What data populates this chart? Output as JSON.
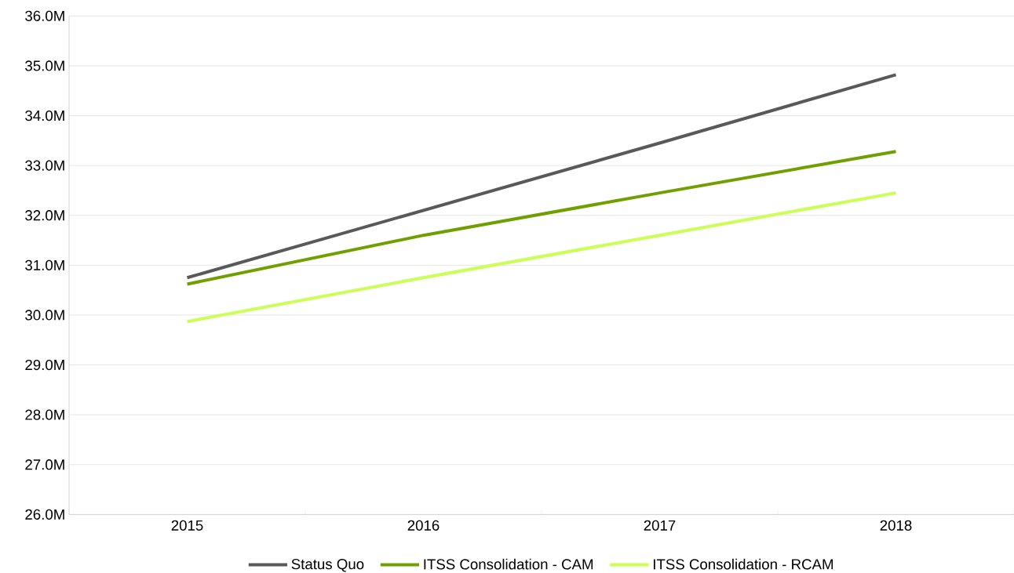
{
  "chart_data": {
    "type": "line",
    "categories": [
      "2015",
      "2016",
      "2017",
      "2018"
    ],
    "series": [
      {
        "name": "Status Quo",
        "color": "#595959",
        "values": [
          30.75,
          32.1,
          33.45,
          34.82
        ]
      },
      {
        "name": "ITSS Consolidation - CAM",
        "color": "#70a000",
        "values": [
          30.62,
          31.6,
          32.45,
          33.28
        ]
      },
      {
        "name": "ITSS Consolidation - RCAM",
        "color": "#ccff55",
        "values": [
          29.87,
          30.75,
          31.6,
          32.45
        ]
      }
    ],
    "ylim": [
      26,
      36
    ],
    "yticks": [
      {
        "value": 26,
        "label": "26.0M"
      },
      {
        "value": 27,
        "label": "27.0M"
      },
      {
        "value": 28,
        "label": "28.0M"
      },
      {
        "value": 29,
        "label": "29.0M"
      },
      {
        "value": 30,
        "label": "30.0M"
      },
      {
        "value": 31,
        "label": "31.0M"
      },
      {
        "value": 32,
        "label": "32.0M"
      },
      {
        "value": 33,
        "label": "33.0M"
      },
      {
        "value": 34,
        "label": "34.0M"
      },
      {
        "value": 35,
        "label": "35.0M"
      },
      {
        "value": 36,
        "label": "36.0M"
      }
    ],
    "grid": "y",
    "legend": "bottom"
  }
}
